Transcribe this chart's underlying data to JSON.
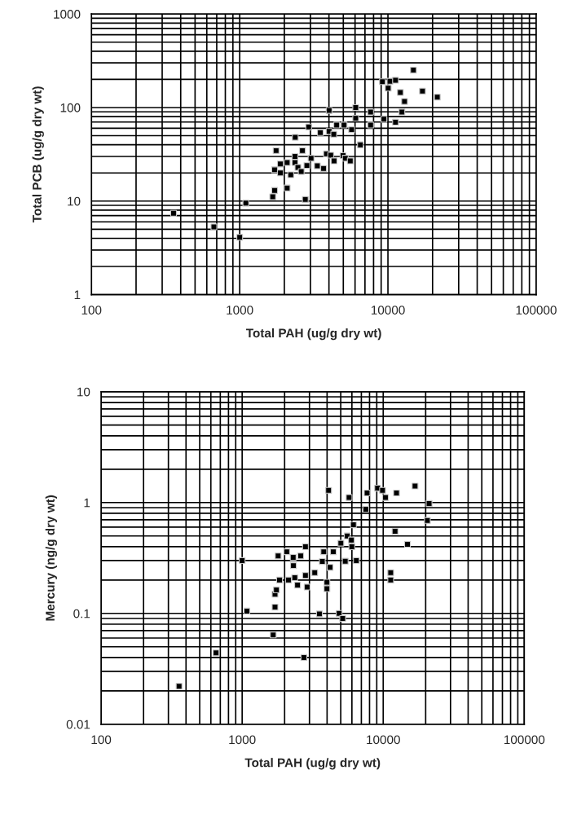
{
  "chart_data": [
    {
      "type": "scatter",
      "xlabel": "Total PAH (ug/g dry wt)",
      "ylabel": "Total PCB (ug/g dry wt)",
      "log": "xy",
      "grid": true,
      "marker": "square",
      "xlim": [
        100,
        100000
      ],
      "ylim": [
        1,
        1000
      ],
      "xticks": [
        100,
        1000,
        10000,
        100000
      ],
      "yticks": [
        1,
        10,
        100,
        1000
      ],
      "series": [
        {
          "color": "#000000",
          "x": [
            358,
            670,
            1000,
            1100,
            1670,
            1720,
            2090,
            2770,
            1720,
            1880,
            1880,
            2090,
            2210,
            2360,
            2360,
            2470,
            2600,
            2650,
            1760,
            2840,
            3030,
            3340,
            3680,
            2370,
            2920,
            3500,
            4010,
            4310,
            4010,
            3850,
            4110,
            4330,
            4510,
            5060,
            4980,
            5160,
            5570,
            5690,
            6520,
            6060,
            6060,
            7640,
            7640,
            9390,
            11250,
            12420,
            12940,
            12130,
            9180,
            10320,
            11250,
            10040,
            14860,
            17100,
            21520
          ],
          "values": [
            7.4,
            5.3,
            4.1,
            9.5,
            11.1,
            13.0,
            13.8,
            10.4,
            21.6,
            20,
            24.9,
            25.8,
            19.1,
            25.8,
            30,
            22.9,
            20.7,
            34.6,
            34.6,
            24,
            28.7,
            23.8,
            22.3,
            48,
            62,
            54,
            55.5,
            51.9,
            93,
            32,
            30.9,
            26.9,
            65,
            65,
            30.6,
            28.7,
            26.9,
            58,
            40,
            77,
            100,
            89.6,
            65,
            75,
            69.8,
            89.6,
            116,
            145,
            189,
            191,
            196,
            161,
            251,
            150,
            129
          ]
        }
      ]
    },
    {
      "type": "scatter",
      "xlabel": "Total PAH (ug/g dry wt)",
      "ylabel": "Mercury (ng/g dry wt)",
      "log": "xy",
      "grid": true,
      "marker": "square",
      "xlim": [
        100,
        100000
      ],
      "ylim": [
        0.01,
        10
      ],
      "xticks": [
        100,
        1000,
        10000,
        100000
      ],
      "yticks": [
        0.01,
        0.1,
        1,
        10
      ],
      "series": [
        {
          "color": "#000000",
          "x": [
            357,
            653,
            1660,
            2740,
            1080,
            1000,
            1710,
            1710,
            1750,
            1800,
            1840,
            2070,
            2130,
            2300,
            2310,
            2360,
            2470,
            2600,
            2810,
            2810,
            2890,
            3270,
            3530,
            3790,
            3700,
            3990,
            3990,
            4100,
            4200,
            4430,
            4870,
            5160,
            5010,
            5380,
            5560,
            5730,
            5950,
            5990,
            6150,
            6450,
            7530,
            7690,
            9120,
            9890,
            10370,
            11300,
            11300,
            12130,
            12420,
            14860,
            16820,
            20560,
            21150
          ],
          "values": [
            0.022,
            0.044,
            0.064,
            0.04,
            0.105,
            0.3,
            0.114,
            0.149,
            0.163,
            0.33,
            0.2,
            0.36,
            0.2,
            0.32,
            0.27,
            0.21,
            0.18,
            0.33,
            0.4,
            0.22,
            0.173,
            0.233,
            0.099,
            0.36,
            0.294,
            0.191,
            0.167,
            1.29,
            0.26,
            0.36,
            0.1,
            0.09,
            0.43,
            0.296,
            0.5,
            1.11,
            0.46,
            0.4,
            0.63,
            0.3,
            0.87,
            1.22,
            1.35,
            1.29,
            1.11,
            0.233,
            0.2,
            0.55,
            1.22,
            0.42,
            1.41,
            0.69,
            0.98
          ]
        }
      ]
    }
  ]
}
